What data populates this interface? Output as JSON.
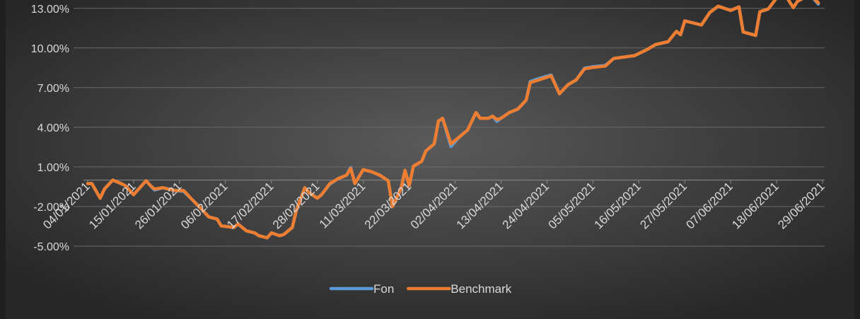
{
  "chart_data": {
    "type": "line",
    "x": [
      "04/01/2021",
      "05/01/2021",
      "07/01/2021",
      "08/01/2021",
      "10/01/2021",
      "12/01/2021",
      "13/01/2021",
      "15/01/2021",
      "18/01/2021",
      "19/01/2021",
      "20/01/2021",
      "22/01/2021",
      "25/01/2021",
      "27/01/2021",
      "29/01/2021",
      "31/01/2021",
      "02/02/2021",
      "04/02/2021",
      "05/02/2021",
      "08/02/2021",
      "09/02/2021",
      "11/02/2021",
      "13/02/2021",
      "14/02/2021",
      "16/02/2021",
      "17/02/2021",
      "19/02/2021",
      "20/02/2021",
      "22/02/2021",
      "23/02/2021",
      "25/02/2021",
      "26/02/2021",
      "28/02/2021",
      "01/03/2021",
      "03/03/2021",
      "05/03/2021",
      "07/03/2021",
      "08/03/2021",
      "09/03/2021",
      "11/03/2021",
      "13/03/2021",
      "15/03/2021",
      "17/03/2021",
      "18/03/2021",
      "20/03/2021",
      "21/03/2021",
      "22/03/2021",
      "23/03/2021",
      "25/03/2021",
      "26/03/2021",
      "28/03/2021",
      "29/03/2021",
      "30/03/2021",
      "01/04/2021",
      "03/04/2021",
      "05/04/2021",
      "07/04/2021",
      "08/04/2021",
      "10/04/2021",
      "11/04/2021",
      "12/04/2021",
      "13/04/2021",
      "15/04/2021",
      "17/04/2021",
      "19/04/2021",
      "20/04/2021",
      "22/04/2021",
      "25/04/2021",
      "27/04/2021",
      "29/04/2021",
      "01/05/2021",
      "03/05/2021",
      "05/05/2021",
      "08/05/2021",
      "10/05/2021",
      "15/05/2021",
      "18/05/2021",
      "20/05/2021",
      "23/05/2021",
      "25/05/2021",
      "26/05/2021",
      "27/05/2021",
      "31/05/2021",
      "02/06/2021",
      "04/06/2021",
      "07/06/2021",
      "09/06/2021",
      "10/06/2021",
      "13/06/2021",
      "14/06/2021",
      "16/06/2021",
      "18/06/2021",
      "20/06/2021",
      "22/06/2021",
      "23/06/2021",
      "26/06/2021",
      "28/06/2021"
    ],
    "series": [
      {
        "name": "Fon",
        "color": "#5b9bd5",
        "values": [
          -0.26,
          -0.26,
          -1.37,
          -0.68,
          0,
          -0.26,
          -0.42,
          -1.11,
          -0.05,
          -0.42,
          -0.75,
          -0.58,
          -0.79,
          -0.85,
          -1.47,
          -2.11,
          -2.79,
          -2.95,
          -3.47,
          -3.58,
          -3.32,
          -3.84,
          -4.0,
          -4.21,
          -4.37,
          -4.0,
          -4.21,
          -4.11,
          -3.58,
          -2.26,
          -0.58,
          -0.95,
          -1.37,
          -1.11,
          -0.3,
          0.11,
          0.37,
          0.95,
          -0.26,
          0.79,
          0.63,
          0.37,
          -0.05,
          -2.0,
          -0.68,
          0.74,
          -0.42,
          1.05,
          1.42,
          2.21,
          2.74,
          4.47,
          4.68,
          2.55,
          3.26,
          3.79,
          5.11,
          4.68,
          4.68,
          4.84,
          4.45,
          4.68,
          5.11,
          5.37,
          6.05,
          7.47,
          7.68,
          7.95,
          6.53,
          7.21,
          7.58,
          8.47,
          8.58,
          8.68,
          9.21,
          9.42,
          9.89,
          10.26,
          10.47,
          11.26,
          11.0,
          12.05,
          11.74,
          12.68,
          13.16,
          12.84,
          13.11,
          11.21,
          10.95,
          12.74,
          12.95,
          13.79,
          14.05,
          13.05,
          13.53,
          14.05,
          13.32
        ]
      },
      {
        "name": "Benchmark",
        "color": "#ed7d31",
        "values": [
          -0.26,
          -0.26,
          -1.37,
          -0.68,
          0,
          -0.26,
          -0.42,
          -1.11,
          -0.05,
          -0.42,
          -0.68,
          -0.58,
          -0.79,
          -0.79,
          -1.47,
          -2.11,
          -2.79,
          -2.95,
          -3.47,
          -3.58,
          -3.32,
          -3.84,
          -4.0,
          -4.21,
          -4.37,
          -4.0,
          -4.21,
          -4.11,
          -3.58,
          -2.26,
          -0.58,
          -0.95,
          -1.37,
          -1.11,
          -0.26,
          0.11,
          0.37,
          0.89,
          -0.26,
          0.79,
          0.63,
          0.37,
          -0.05,
          -2.0,
          -0.68,
          0.74,
          -0.42,
          1.05,
          1.42,
          2.21,
          2.74,
          4.47,
          4.68,
          2.74,
          3.26,
          3.79,
          5.11,
          4.68,
          4.68,
          4.84,
          4.58,
          4.68,
          5.11,
          5.37,
          6.05,
          7.37,
          7.58,
          7.89,
          6.53,
          7.21,
          7.58,
          8.42,
          8.53,
          8.63,
          9.21,
          9.42,
          9.89,
          10.26,
          10.47,
          11.26,
          11.0,
          12.05,
          11.74,
          12.68,
          13.16,
          12.84,
          13.11,
          11.21,
          10.95,
          12.74,
          12.95,
          13.79,
          14.05,
          13.05,
          13.53,
          14.05,
          13.42
        ]
      }
    ],
    "xlim": [
      "04/01/2021",
      "29/06/2021"
    ],
    "xticks": [
      "04/01/2021",
      "15/01/2021",
      "26/01/2021",
      "06/02/2021",
      "17/02/2021",
      "28/02/2021",
      "11/03/2021",
      "22/03/2021",
      "02/04/2021",
      "13/04/2021",
      "24/04/2021",
      "05/05/2021",
      "16/05/2021",
      "27/05/2021",
      "07/06/2021",
      "18/06/2021",
      "29/06/2021"
    ],
    "ylim": [
      -5,
      13.63
    ],
    "yticks": [
      {
        "value": -5,
        "label": "-5.00%"
      },
      {
        "value": -2,
        "label": "-2.00%"
      },
      {
        "value": 1,
        "label": "1.00%"
      },
      {
        "value": 4,
        "label": "4.00%"
      },
      {
        "value": 7,
        "label": "7.00%"
      },
      {
        "value": 10,
        "label": "10.00%"
      },
      {
        "value": 13,
        "label": "13.00%"
      }
    ],
    "grid": true,
    "legend": "bottom"
  }
}
